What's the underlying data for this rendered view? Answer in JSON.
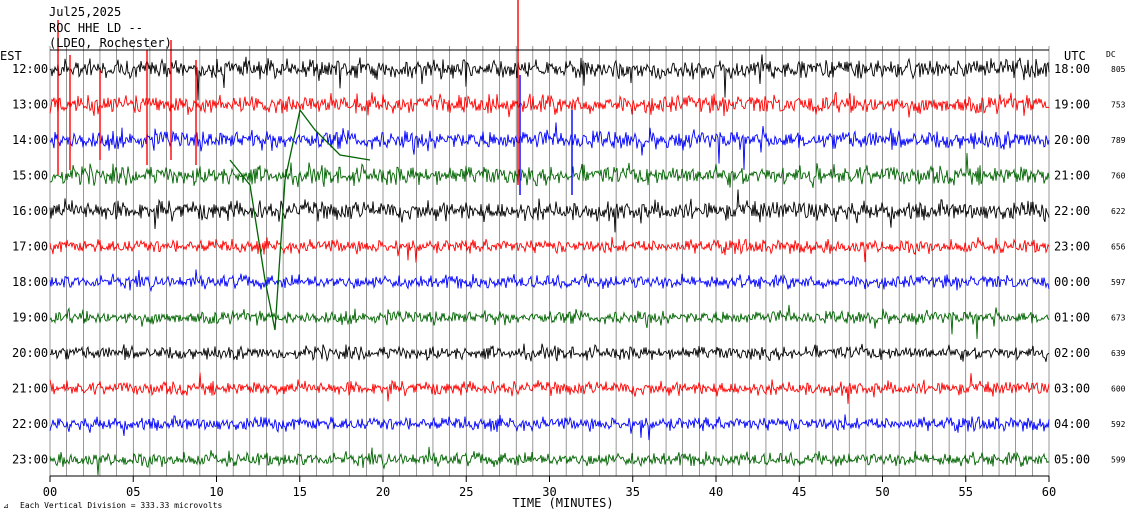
{
  "header": {
    "date": "Jul25,2025",
    "station": "ROC HHE LD --",
    "location": "(LDEO, Rochester)"
  },
  "labels": {
    "left_zone": "EST",
    "right_zone": "UTC",
    "dc": "DC",
    "xlabel": "TIME (MINUTES)",
    "footer": "Each Vertical Division =  333.33 microvolts"
  },
  "colors": {
    "background": "#ffffff",
    "grid": "#000000",
    "trace_cycle": [
      "#000000",
      "#ff0000",
      "#0000ff",
      "#006400"
    ]
  },
  "chart_data": {
    "type": "line",
    "title": "ROC HHE LD --",
    "xlabel": "TIME (MINUTES)",
    "xlim": [
      0,
      60
    ],
    "xticks": [
      "00",
      "05",
      "10",
      "15",
      "20",
      "25",
      "30",
      "35",
      "40",
      "45",
      "50",
      "55",
      "60"
    ],
    "grid": true,
    "rows": [
      {
        "est": "12:00",
        "utc": "18:00",
        "dc": "805",
        "color": "#000000"
      },
      {
        "est": "13:00",
        "utc": "19:00",
        "dc": "753",
        "color": "#ff0000"
      },
      {
        "est": "14:00",
        "utc": "20:00",
        "dc": "789",
        "color": "#0000ff"
      },
      {
        "est": "15:00",
        "utc": "21:00",
        "dc": "760",
        "color": "#006400"
      },
      {
        "est": "16:00",
        "utc": "22:00",
        "dc": "622",
        "color": "#000000"
      },
      {
        "est": "17:00",
        "utc": "23:00",
        "dc": "656",
        "color": "#ff0000"
      },
      {
        "est": "18:00",
        "utc": "00:00",
        "dc": "597",
        "color": "#0000ff"
      },
      {
        "est": "19:00",
        "utc": "01:00",
        "dc": "673",
        "color": "#006400"
      },
      {
        "est": "20:00",
        "utc": "02:00",
        "dc": "639",
        "color": "#000000"
      },
      {
        "est": "21:00",
        "utc": "03:00",
        "dc": "600",
        "color": "#ff0000"
      },
      {
        "est": "22:00",
        "utc": "04:00",
        "dc": "592",
        "color": "#0000ff"
      },
      {
        "est": "23:00",
        "utc": "05:00",
        "dc": "599",
        "color": "#006400"
      }
    ]
  }
}
